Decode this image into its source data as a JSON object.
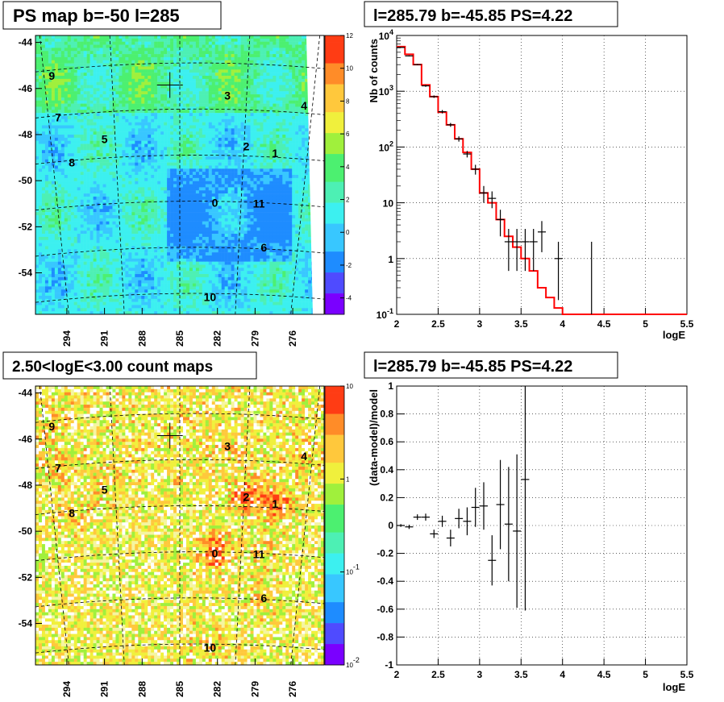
{
  "panels": {
    "tl_title": "PS map b=-50 l=285",
    "tr_title": "l=285.79 b=-45.85 PS=4.22",
    "bl_title": "2.50<logE<3.00 count maps",
    "br_title": "l=285.79 b=-45.85 PS=4.22"
  },
  "chart_data": [
    {
      "type": "heatmap",
      "id": "ps-map",
      "title": "PS map b=-50 l=285",
      "xticks": [
        "294",
        "291",
        "288",
        "285",
        "282",
        "279",
        "276"
      ],
      "yticks": [
        "-44",
        "-46",
        "-48",
        "-50",
        "-52",
        "-54"
      ],
      "xlim": [
        296.5,
        273.5
      ],
      "ylim": [
        -55.8,
        -43.7
      ],
      "colorbar": {
        "ticks": [
          "12",
          "10",
          "8",
          "6",
          "4",
          "2",
          "0",
          "-2",
          "-4"
        ],
        "min": -5,
        "max": 12,
        "scale": "linear"
      },
      "colors": [
        "#7a00ff",
        "#4f4bff",
        "#1e8cff",
        "#38c7ff",
        "#3cf0f0",
        "#4df0b4",
        "#4cf070",
        "#a0f03c",
        "#f0f03c",
        "#ffc83c",
        "#ff8c28",
        "#ff3c14"
      ],
      "crosshair": {
        "x": 285.79,
        "y": -45.85
      },
      "sources": [
        {
          "label": "0",
          "x": 282.2,
          "y": -50.95
        },
        {
          "label": "1",
          "x": 277.4,
          "y": -48.8
        },
        {
          "label": "2",
          "x": 279.7,
          "y": -48.5
        },
        {
          "label": "3",
          "x": 281.2,
          "y": -46.3
        },
        {
          "label": "4",
          "x": 275.1,
          "y": -46.75
        },
        {
          "label": "5",
          "x": 291.0,
          "y": -48.2
        },
        {
          "label": "6",
          "x": 278.3,
          "y": -52.9
        },
        {
          "label": "7",
          "x": 294.7,
          "y": -47.25
        },
        {
          "label": "8",
          "x": 293.6,
          "y": -49.2
        },
        {
          "label": "9",
          "x": 295.2,
          "y": -45.45
        },
        {
          "label": "10",
          "x": 282.6,
          "y": -55.05
        },
        {
          "label": "11",
          "x": 278.7,
          "y": -51.0
        }
      ]
    },
    {
      "type": "line",
      "id": "spectrum",
      "title": "l=285.79 b=-45.85 PS=4.22",
      "xlabel": "logE",
      "ylabel": "Nb of counts",
      "xlim": [
        2,
        5.5
      ],
      "ylim": [
        0.1,
        10000
      ],
      "yscale": "log",
      "grid": true,
      "xticks": [
        "2",
        "2.5",
        "3",
        "3.5",
        "4",
        "4.5",
        "5",
        "5.5"
      ],
      "yticks": [
        "10^-1",
        "1",
        "10",
        "10^2",
        "10^3",
        "10^4"
      ],
      "data": {
        "x": [
          2.05,
          2.15,
          2.25,
          2.35,
          2.45,
          2.55,
          2.65,
          2.75,
          2.85,
          2.95,
          3.05,
          3.15,
          3.25,
          3.35,
          3.45,
          3.55,
          3.65,
          3.75,
          3.95,
          4.35
        ],
        "y": [
          6100,
          4300,
          3000,
          1250,
          800,
          430,
          250,
          140,
          75,
          40,
          15,
          12,
          5,
          2,
          2,
          2,
          2,
          3,
          1,
          0
        ],
        "yerr_low": [
          100,
          100,
          80,
          50,
          40,
          30,
          20,
          15,
          10,
          8,
          5,
          4,
          2.5,
          1.4,
          1.4,
          1.4,
          1.4,
          1.7,
          0.82,
          0
        ],
        "yerr_high": [
          100,
          100,
          80,
          50,
          40,
          30,
          20,
          15,
          10,
          8,
          5,
          4,
          2.5,
          1.4,
          1.4,
          1.4,
          1.4,
          1.7,
          1.0,
          0
        ]
      },
      "model": {
        "edges": [
          2.0,
          2.1,
          2.2,
          2.3,
          2.4,
          2.5,
          2.6,
          2.7,
          2.8,
          2.9,
          3.0,
          3.1,
          3.2,
          3.3,
          3.4,
          3.5,
          3.6,
          3.7,
          3.8,
          3.9,
          4.0,
          5.5
        ],
        "values": [
          6300,
          4600,
          3000,
          1300,
          800,
          420,
          250,
          140,
          80,
          40,
          15,
          10,
          5,
          2.5,
          1.6,
          1.0,
          0.6,
          0.3,
          0.2,
          0.13,
          0.1
        ]
      },
      "model_color": "#ff0000"
    },
    {
      "type": "heatmap",
      "id": "count-map",
      "title": "2.50<logE<3.00 count maps",
      "xticks": [
        "294",
        "291",
        "288",
        "285",
        "282",
        "279",
        "276"
      ],
      "yticks": [
        "-44",
        "-46",
        "-48",
        "-50",
        "-52",
        "-54"
      ],
      "xlim": [
        296.5,
        273.5
      ],
      "ylim": [
        -55.8,
        -43.7
      ],
      "colorbar": {
        "ticks": [
          "10",
          "1",
          "10^-1",
          "10^-2"
        ],
        "min": 0.01,
        "max": 10,
        "scale": "log"
      },
      "colors": [
        "#7a00ff",
        "#4f4bff",
        "#1e8cff",
        "#38c7ff",
        "#3cf0f0",
        "#4df0b4",
        "#4cf070",
        "#a0f03c",
        "#f0f03c",
        "#ffc83c",
        "#ff8c28",
        "#ff3c14"
      ],
      "crosshair": {
        "x": 285.79,
        "y": -45.85
      },
      "sources": [
        {
          "label": "0",
          "x": 282.2,
          "y": -50.95
        },
        {
          "label": "1",
          "x": 277.4,
          "y": -48.8
        },
        {
          "label": "2",
          "x": 279.7,
          "y": -48.5
        },
        {
          "label": "3",
          "x": 281.2,
          "y": -46.3
        },
        {
          "label": "4",
          "x": 275.1,
          "y": -46.75
        },
        {
          "label": "5",
          "x": 291.0,
          "y": -48.2
        },
        {
          "label": "6",
          "x": 278.3,
          "y": -52.9
        },
        {
          "label": "7",
          "x": 294.7,
          "y": -47.25
        },
        {
          "label": "8",
          "x": 293.6,
          "y": -49.2
        },
        {
          "label": "9",
          "x": 295.2,
          "y": -45.45
        },
        {
          "label": "10",
          "x": 282.6,
          "y": -55.05
        },
        {
          "label": "11",
          "x": 278.7,
          "y": -51.0
        }
      ]
    },
    {
      "type": "scatter",
      "id": "residuals",
      "title": "l=285.79 b=-45.85 PS=4.22",
      "xlabel": "logE",
      "ylabel": "(data-model)/model",
      "xlim": [
        2,
        5.5
      ],
      "ylim": [
        -1,
        1
      ],
      "grid": true,
      "xticks": [
        "2",
        "2.5",
        "3",
        "3.5",
        "4",
        "4.5",
        "5",
        "5.5"
      ],
      "yticks": [
        "-1",
        "-0.8",
        "-0.6",
        "-0.4",
        "-0.2",
        "0",
        "0.2",
        "0.4",
        "0.6",
        "0.8",
        "1"
      ],
      "data": {
        "x": [
          2.05,
          2.15,
          2.25,
          2.35,
          2.45,
          2.55,
          2.65,
          2.75,
          2.85,
          2.95,
          3.05,
          3.15,
          3.25,
          3.35,
          3.45,
          3.55
        ],
        "y": [
          0.0,
          -0.01,
          0.06,
          0.06,
          -0.06,
          0.03,
          -0.09,
          0.05,
          0.03,
          0.13,
          0.14,
          -0.25,
          0.15,
          0.01,
          -0.04,
          0.33
        ],
        "yerr": [
          0.01,
          0.015,
          0.02,
          0.025,
          0.03,
          0.04,
          0.06,
          0.07,
          0.1,
          0.14,
          0.17,
          0.18,
          0.32,
          0.41,
          0.55,
          0.94
        ]
      }
    }
  ]
}
